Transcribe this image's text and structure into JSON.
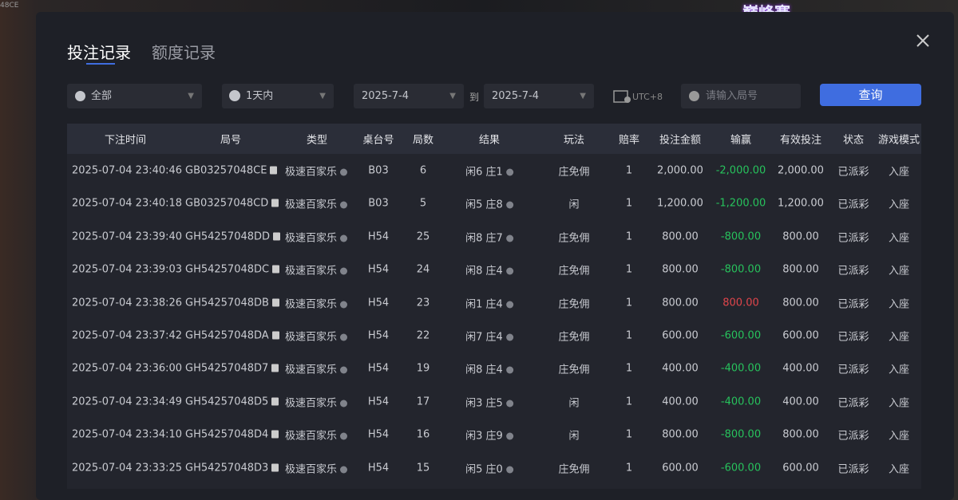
{
  "background": {
    "logo": "巅峰赛",
    "corner_text": "48CE"
  },
  "tabs": [
    "投注记录",
    "额度记录"
  ],
  "filters": {
    "category": "全部",
    "period": "1天内",
    "date_from": "2025-7-4",
    "date_sep": "到",
    "date_to": "2025-7-4",
    "timezone": "UTC+8",
    "round_placeholder": "请输入局号",
    "search_button": "查询"
  },
  "table": {
    "columns": [
      "下注时间",
      "局号",
      "类型",
      "桌台号",
      "局数",
      "结果",
      "玩法",
      "赔率",
      "投注金额",
      "输赢",
      "有效投注",
      "状态",
      "游戏模式"
    ],
    "rows": [
      [
        "2025-07-04 23:40:46",
        "GB03257048CE",
        "极速百家乐",
        "B03",
        "6",
        "闲6 庄1",
        "庄免佣",
        "1",
        "2,000.00",
        "-2,000.00",
        "2,000.00",
        "已派彩",
        "入座"
      ],
      [
        "2025-07-04 23:40:18",
        "GB03257048CD",
        "极速百家乐",
        "B03",
        "5",
        "闲5 庄8",
        "闲",
        "1",
        "1,200.00",
        "-1,200.00",
        "1,200.00",
        "已派彩",
        "入座"
      ],
      [
        "2025-07-04 23:39:40",
        "GH54257048DD",
        "极速百家乐",
        "H54",
        "25",
        "闲8 庄7",
        "庄免佣",
        "1",
        "800.00",
        "-800.00",
        "800.00",
        "已派彩",
        "入座"
      ],
      [
        "2025-07-04 23:39:03",
        "GH54257048DC",
        "极速百家乐",
        "H54",
        "24",
        "闲8 庄4",
        "庄免佣",
        "1",
        "800.00",
        "-800.00",
        "800.00",
        "已派彩",
        "入座"
      ],
      [
        "2025-07-04 23:38:26",
        "GH54257048DB",
        "极速百家乐",
        "H54",
        "23",
        "闲1 庄4",
        "庄免佣",
        "1",
        "800.00",
        "800.00",
        "800.00",
        "已派彩",
        "入座"
      ],
      [
        "2025-07-04 23:37:42",
        "GH54257048DA",
        "极速百家乐",
        "H54",
        "22",
        "闲7 庄4",
        "庄免佣",
        "1",
        "600.00",
        "-600.00",
        "600.00",
        "已派彩",
        "入座"
      ],
      [
        "2025-07-04 23:36:00",
        "GH54257048D7",
        "极速百家乐",
        "H54",
        "19",
        "闲8 庄4",
        "庄免佣",
        "1",
        "400.00",
        "-400.00",
        "400.00",
        "已派彩",
        "入座"
      ],
      [
        "2025-07-04 23:34:49",
        "GH54257048D5",
        "极速百家乐",
        "H54",
        "17",
        "闲3 庄5",
        "闲",
        "1",
        "400.00",
        "-400.00",
        "400.00",
        "已派彩",
        "入座"
      ],
      [
        "2025-07-04 23:34:10",
        "GH54257048D4",
        "极速百家乐",
        "H54",
        "16",
        "闲3 庄9",
        "闲",
        "1",
        "800.00",
        "-800.00",
        "800.00",
        "已派彩",
        "入座"
      ],
      [
        "2025-07-04 23:33:25",
        "GH54257048D3",
        "极速百家乐",
        "H54",
        "15",
        "闲5 庄0",
        "庄免佣",
        "1",
        "600.00",
        "-600.00",
        "600.00",
        "已派彩",
        "入座"
      ]
    ]
  }
}
